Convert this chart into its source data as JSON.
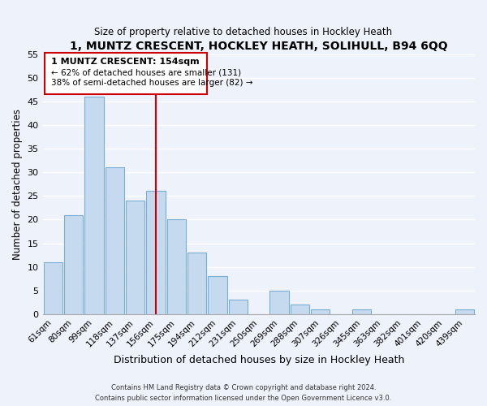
{
  "title": "1, MUNTZ CRESCENT, HOCKLEY HEATH, SOLIHULL, B94 6QQ",
  "subtitle": "Size of property relative to detached houses in Hockley Heath",
  "xlabel": "Distribution of detached houses by size in Hockley Heath",
  "ylabel": "Number of detached properties",
  "bar_color": "#c5d9ef",
  "bar_edge_color": "#7aaed4",
  "categories": [
    "61sqm",
    "80sqm",
    "99sqm",
    "118sqm",
    "137sqm",
    "156sqm",
    "175sqm",
    "194sqm",
    "212sqm",
    "231sqm",
    "250sqm",
    "269sqm",
    "288sqm",
    "307sqm",
    "326sqm",
    "345sqm",
    "363sqm",
    "382sqm",
    "401sqm",
    "420sqm",
    "439sqm"
  ],
  "values": [
    11,
    21,
    46,
    31,
    24,
    26,
    20,
    13,
    8,
    3,
    0,
    5,
    2,
    1,
    0,
    1,
    0,
    0,
    0,
    0,
    1
  ],
  "ylim": [
    0,
    55
  ],
  "yticks": [
    0,
    5,
    10,
    15,
    20,
    25,
    30,
    35,
    40,
    45,
    50,
    55
  ],
  "marker_bin_index": 5,
  "annotation_line1": "1 MUNTZ CRESCENT: 154sqm",
  "annotation_line2": "← 62% of detached houses are smaller (131)",
  "annotation_line3": "38% of semi-detached houses are larger (82) →",
  "vline_color": "#cc0000",
  "box_edge_color": "#cc0000",
  "footer1": "Contains HM Land Registry data © Crown copyright and database right 2024.",
  "footer2": "Contains public sector information licensed under the Open Government Licence v3.0.",
  "background_color": "#eef2fb",
  "plot_bg_color": "#eef2fb",
  "grid_color": "#ffffff"
}
